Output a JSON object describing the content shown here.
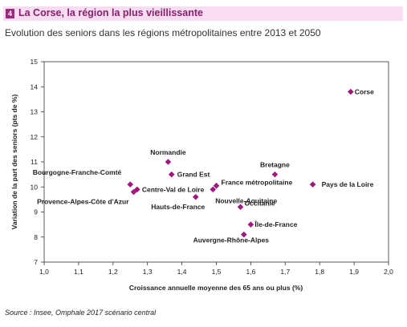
{
  "header": {
    "number": "4",
    "title": "La Corse, la région la plus vieillissante",
    "subtitle": "Evolution des seniors dans les régions métropolitaines entre 2013 et 2050",
    "source": "Source : Insee, Omphale 2017 scénario central"
  },
  "colors": {
    "marker": "#a0177e",
    "highlight_label": "#8a1f6d",
    "header_bg": "#f7dcf2"
  },
  "chart_data": {
    "type": "scatter",
    "xlabel": "Croissance annuelle moyenne des 65 ans ou plus (%)",
    "ylabel": "Variation de la part des seniors (pts de %)",
    "xlim": [
      1.0,
      2.0
    ],
    "ylim": [
      7,
      15
    ],
    "xticks": [
      "1,0",
      "1,1",
      "1,2",
      "1,3",
      "1,4",
      "1,5",
      "1,6",
      "1,7",
      "1,8",
      "1,9",
      "2,0"
    ],
    "yticks": [
      "7",
      "8",
      "9",
      "10",
      "11",
      "12",
      "13",
      "14",
      "15"
    ],
    "grid": false,
    "points": [
      {
        "label": "Corse",
        "x": 1.89,
        "y": 13.8
      },
      {
        "label": "Normandie",
        "x": 1.36,
        "y": 11.0
      },
      {
        "label": "Grand Est",
        "x": 1.37,
        "y": 10.5
      },
      {
        "label": "Bretagne",
        "x": 1.67,
        "y": 10.5
      },
      {
        "label": "Bourgogne-Franche-Comté",
        "x": 1.25,
        "y": 10.1
      },
      {
        "label": "Centre-Val de Loire",
        "x": 1.27,
        "y": 9.9
      },
      {
        "label": "Provence-Alpes-Côte d'Azur",
        "x": 1.26,
        "y": 9.8
      },
      {
        "label": "France métropolitaine",
        "x": 1.5,
        "y": 10.05,
        "highlight": true
      },
      {
        "label": "Nouvelle-Aquitaine",
        "x": 1.49,
        "y": 9.9
      },
      {
        "label": "Hauts-de-France",
        "x": 1.44,
        "y": 9.6
      },
      {
        "label": "Occitanie",
        "x": 1.57,
        "y": 9.2
      },
      {
        "label": "Pays de la Loire",
        "x": 1.78,
        "y": 10.1
      },
      {
        "label": "Île-de-France",
        "x": 1.6,
        "y": 8.5
      },
      {
        "label": "Auvergne-Rhône-Alpes",
        "x": 1.58,
        "y": 8.1
      }
    ]
  }
}
